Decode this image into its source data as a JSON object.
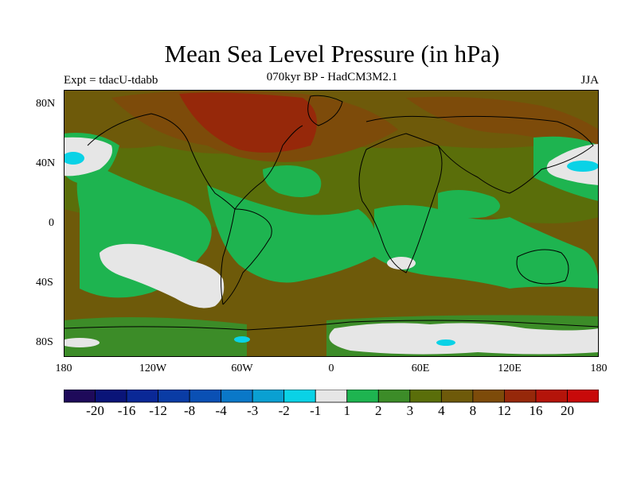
{
  "title": "Mean Sea Level Pressure (in hPa)",
  "subtitle": "070kyr BP - HadCM3M2.1",
  "experiment": "Expt = tdacU-tdabb",
  "season": "JJA",
  "lat_labels": [
    "80N",
    "40N",
    "0",
    "40S",
    "80S"
  ],
  "lon_labels": [
    "180",
    "120W",
    "60W",
    "0",
    "60E",
    "120E",
    "180"
  ],
  "colorbar": {
    "colors": [
      "#1e0a5a",
      "#0a1478",
      "#0a2896",
      "#0a3ca5",
      "#0a50b4",
      "#0a78c8",
      "#0aa0d2",
      "#0ad2e6",
      "#e6e6e6",
      "#1eb450",
      "#3c8c28",
      "#5a6e0a",
      "#6e5a0a",
      "#7d4b0a",
      "#96280a",
      "#b4140a",
      "#c80a0a"
    ],
    "labels": [
      "-20",
      "-16",
      "-12",
      "-8",
      "-4",
      "-3",
      "-2",
      "-1",
      "1",
      "2",
      "3",
      "4",
      "8",
      "12",
      "16",
      "20"
    ]
  },
  "palette": {
    "ocean_green": "#1eb450",
    "mid_green": "#3c8c28",
    "olive": "#5a6e0a",
    "brown": "#6e5a0a",
    "dark_brown": "#7d4b0a",
    "red_brown": "#96280a",
    "white": "#e6e6e6",
    "cyan": "#0ad2e6"
  }
}
